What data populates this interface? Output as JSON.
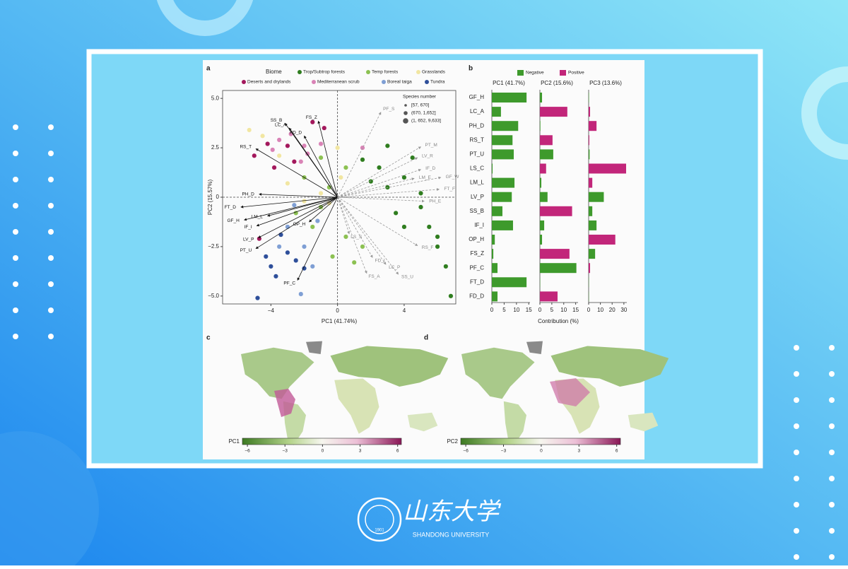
{
  "chart_data": [
    {
      "type": "scatter",
      "panel_label": "a",
      "xlabel": "PC1 (41.74%)",
      "ylabel": "PC2 (15.57%)",
      "xlim": [
        -6.9,
        7.1
      ],
      "ylim": [
        -5.4,
        5.4
      ],
      "xticks": [
        {
          "value": -4,
          "label": "−4"
        },
        0,
        4
      ],
      "yticks": [
        {
          "value": 5,
          "label": "5.0"
        },
        2.5,
        0,
        {
          "value": -2.5,
          "label": "−2.5"
        },
        {
          "value": -5,
          "label": "−5.0"
        }
      ],
      "legend_title": "Biome",
      "series": [
        {
          "name": "Trop/Subtrop forests",
          "color": "#2f7d1f",
          "x": [
            3,
            4,
            5,
            6,
            5.5,
            3.5,
            2.5,
            4.5,
            6.5,
            6.8,
            3,
            2,
            5,
            4,
            6,
            1.5
          ],
          "y": [
            0.5,
            1,
            -0.5,
            -2.5,
            -1.5,
            -0.8,
            1.5,
            2,
            -3.5,
            -5,
            2.6,
            0.8,
            0.2,
            -1.5,
            -2,
            1.9
          ]
        },
        {
          "name": "Temp forests",
          "color": "#8cc152",
          "x": [
            -1,
            -2,
            -1.5,
            0.5,
            1,
            -0.5,
            -2.5,
            0.5,
            -1,
            1.5,
            -0.3
          ],
          "y": [
            -0.5,
            1,
            -1.5,
            -2,
            -3.3,
            0.5,
            -0.8,
            1.5,
            2,
            -2.5,
            -3
          ]
        },
        {
          "name": "Grasslands",
          "color": "#f1e6a2",
          "x": [
            -0.5,
            -3,
            -1,
            -5.3,
            -3.5,
            0.2,
            -2,
            -4.5,
            -1.2,
            0
          ],
          "y": [
            -0.3,
            0.7,
            0.2,
            3.4,
            2.1,
            1,
            -0.2,
            3.1,
            -1.2,
            2.5
          ]
        },
        {
          "name": "Deserts and drylands",
          "color": "#a3185c",
          "x": [
            -4.2,
            -2.6,
            -3.8,
            -0.8,
            -5,
            -1.5,
            -3,
            -4.7
          ],
          "y": [
            2.7,
            1.8,
            1.5,
            3.5,
            2.1,
            3.8,
            2.6,
            -2.1
          ]
        },
        {
          "name": "Mediterranean scrub",
          "color": "#d983b6",
          "x": [
            -2.8,
            -2,
            -3.5,
            -1,
            -2.2,
            -3.9,
            1.5,
            -1.8
          ],
          "y": [
            3.2,
            2.6,
            2.9,
            2.7,
            1.8,
            2.4,
            2.5,
            2.2
          ]
        },
        {
          "name": "Boreal taiga",
          "color": "#7f9fd4",
          "x": [
            -3,
            -2,
            -1.5,
            -2.2,
            -3.5,
            -1.2,
            -2.6
          ],
          "y": [
            -1.5,
            -2.5,
            -3.5,
            -4.9,
            -2.5,
            -1.2,
            -0.4
          ]
        },
        {
          "name": "Tundra",
          "color": "#2e4f9a",
          "x": [
            -3,
            -4,
            -2.5,
            -4.8,
            -3.7,
            -2,
            -3.4,
            -4.3
          ],
          "y": [
            -2.8,
            -3.5,
            -3.2,
            -5.1,
            -4,
            -3.6,
            -1.9,
            -3
          ]
        }
      ],
      "size_legend": {
        "title": "Species number",
        "labels": [
          "[57, 670]",
          "(670, 1,652]",
          "(1, 652, 9,633]"
        ]
      },
      "loadings": [
        {
          "label": "SS_B",
          "x": -3.15,
          "y": 3.74,
          "style": "solid"
        },
        {
          "label": "LC_A",
          "x": -2.9,
          "y": 3.5,
          "style": "solid"
        },
        {
          "label": "FS_Z",
          "x": -1.15,
          "y": 3.85,
          "style": "solid"
        },
        {
          "label": "FD_D",
          "x": -2.0,
          "y": 3.1,
          "style": "solid"
        },
        {
          "label": "RS_T",
          "x": -4.9,
          "y": 2.45,
          "style": "solid"
        },
        {
          "label": "PH_D",
          "x": -4.7,
          "y": 0.15,
          "style": "solid"
        },
        {
          "label": "FT_D",
          "x": -5.8,
          "y": -0.5,
          "style": "solid"
        },
        {
          "label": "LM_L",
          "x": -4.2,
          "y": -0.95,
          "style": "solid"
        },
        {
          "label": "GF_H",
          "x": -5.6,
          "y": -1.15,
          "style": "solid"
        },
        {
          "label": "IF_I",
          "x": -4.85,
          "y": -1.45,
          "style": "solid"
        },
        {
          "label": "LV_P",
          "x": -4.75,
          "y": -2.05,
          "style": "solid"
        },
        {
          "label": "PT_U",
          "x": -4.9,
          "y": -2.6,
          "style": "solid"
        },
        {
          "label": "OP_H",
          "x": -1.7,
          "y": -1.25,
          "style": "solid"
        },
        {
          "label": "PF_C",
          "x": -2.4,
          "y": -4.2,
          "style": "solid"
        },
        {
          "label": "PF_S",
          "x": 2.6,
          "y": 4.3,
          "style": "dashed"
        },
        {
          "label": "PT_M",
          "x": 5.0,
          "y": 2.55,
          "style": "dashed"
        },
        {
          "label": "LV_R",
          "x": 4.8,
          "y": 2.0,
          "style": "dashed"
        },
        {
          "label": "IF_D",
          "x": 5.0,
          "y": 1.4,
          "style": "dashed"
        },
        {
          "label": "GF_W",
          "x": 6.2,
          "y": 1.0,
          "style": "dashed"
        },
        {
          "label": "LM_E",
          "x": 4.6,
          "y": 0.95,
          "style": "dashed"
        },
        {
          "label": "FT_F",
          "x": 6.1,
          "y": 0.4,
          "style": "dashed"
        },
        {
          "label": "PH_E",
          "x": 5.2,
          "y": -0.2,
          "style": "dashed"
        },
        {
          "label": "RS_F",
          "x": 4.8,
          "y": -2.45,
          "style": "dashed"
        },
        {
          "label": "LC_P",
          "x": 2.9,
          "y": -3.4,
          "style": "dashed"
        },
        {
          "label": "SS_U",
          "x": 3.65,
          "y": -3.9,
          "style": "dashed"
        },
        {
          "label": "FD_I",
          "x": 2.1,
          "y": -3.05,
          "style": "dashed"
        },
        {
          "label": "FS_A",
          "x": 1.75,
          "y": -3.85,
          "style": "dashed"
        },
        {
          "label": "LS_S",
          "x": 0.7,
          "y": -1.85,
          "style": "dashed"
        }
      ]
    },
    {
      "type": "bar",
      "orientation": "horizontal",
      "panel_label": "b",
      "xlabel": "Contribution (%)",
      "categories": [
        "GF_H",
        "LC_A",
        "PH_D",
        "RS_T",
        "PT_U",
        "LS_C",
        "LM_L",
        "LV_P",
        "SS_B",
        "IF_I",
        "OP_H",
        "FS_Z",
        "PF_C",
        "FT_D",
        "FD_D"
      ],
      "series": [
        {
          "name": "Negative",
          "color": "#3e9a2c"
        },
        {
          "name": "Positive",
          "color": "#c2267a"
        }
      ],
      "panels": [
        {
          "title": "PC1 (41.7%)",
          "xlim": [
            0,
            15.5
          ],
          "xticks": [
            0,
            5,
            10,
            15
          ],
          "values": [
            [
              14.1,
              3.7,
              10.7,
              8.4,
              8.9,
              0.3,
              9.2,
              8.1,
              4.3,
              8.6,
              1.2,
              0.6,
              2.3,
              14.1,
              2.3
            ],
            [
              null,
              null,
              null,
              null,
              null,
              null,
              null,
              null,
              null,
              null,
              null,
              null,
              null,
              null,
              null
            ]
          ]
        },
        {
          "title": "PC2 (15.6%)",
          "xlim": [
            0,
            16
          ],
          "xticks": [
            0,
            5,
            10,
            15
          ],
          "values": [
            [
              0.9,
              null,
              0.2,
              null,
              5.6,
              null,
              0.6,
              3.2,
              null,
              1.8,
              0.9,
              null,
              15.3,
              0.1,
              null
            ],
            [
              null,
              11.5,
              null,
              5.3,
              null,
              2.6,
              null,
              null,
              13.5,
              null,
              null,
              12.4,
              null,
              null,
              7.4
            ]
          ]
        },
        {
          "title": "PC3 (13.6%)",
          "xlim": [
            0,
            32.5
          ],
          "xticks": [
            0,
            10,
            20,
            30
          ],
          "values": [
            [
              0.3,
              null,
              null,
              null,
              0.8,
              null,
              null,
              12.9,
              3.1,
              6.7,
              null,
              5.5,
              null,
              0.2,
              0.2
            ],
            [
              null,
              1.2,
              6.7,
              0.6,
              null,
              31.9,
              3.1,
              null,
              null,
              null,
              22.7,
              null,
              1.2,
              null,
              null
            ]
          ]
        }
      ]
    },
    {
      "type": "map",
      "panel_label": "c",
      "colorbar_label": "PC1",
      "clim": [
        -6.4,
        6.3
      ],
      "ticks": [
        {
          "value": -6,
          "label": "−6"
        },
        {
          "value": -3,
          "label": "−3"
        },
        0,
        3,
        6
      ]
    },
    {
      "type": "map",
      "panel_label": "d",
      "colorbar_label": "PC2",
      "clim": [
        -6.4,
        6.3
      ],
      "ticks": [
        {
          "value": -6,
          "label": "−6"
        },
        {
          "value": -3,
          "label": "−3"
        },
        0,
        3,
        6
      ]
    }
  ],
  "logo": {
    "year": "1901",
    "name_cn": "山东大学",
    "name_en": "SHANDONG UNIVERSITY"
  }
}
